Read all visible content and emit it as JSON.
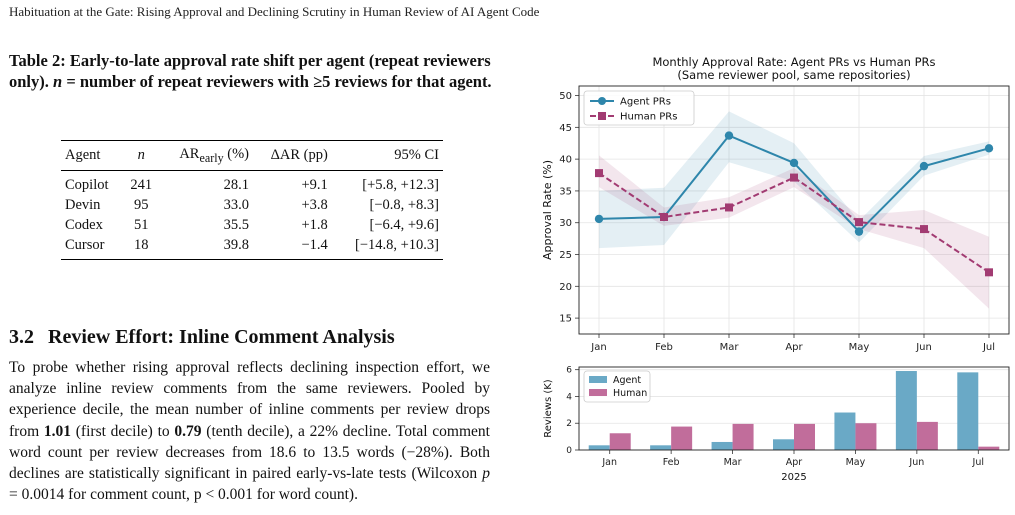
{
  "running_head": "Habituation at the Gate: Rising Approval and Declining Scrutiny in Human Review of AI Agent Code",
  "table": {
    "caption_lead": "Table 2: Early-to-late approval rate shift per agent (repeat reviewers only).",
    "caption_n": "n",
    "caption_rest": " = number of repeat reviewers with ≥5 re­views for that agent.",
    "headers": {
      "agent": "Agent",
      "n": "n",
      "ar_base": "AR",
      "ar_sub": "early",
      "ar_unit": " (%)",
      "dar": "ΔAR (pp)",
      "ci": "95% CI"
    },
    "rows": [
      {
        "agent": "Copilot",
        "n": "241",
        "ar": "28.1",
        "dar": "+9.1",
        "ci": "[+5.8, +12.3]"
      },
      {
        "agent": "Devin",
        "n": "95",
        "ar": "33.0",
        "dar": "+3.8",
        "ci": "[−0.8, +8.3]"
      },
      {
        "agent": "Codex",
        "n": "51",
        "ar": "35.5",
        "dar": "+1.8",
        "ci": "[−6.4, +9.6]"
      },
      {
        "agent": "Cursor",
        "n": "18",
        "ar": "39.8",
        "dar": "−1.4",
        "ci": "[−14.8, +10.3]"
      }
    ]
  },
  "section": {
    "number": "3.2",
    "title": "Review Effort: Inline Comment Analysis",
    "para": {
      "p1": "To probe whether rising approval reflects declining inspection ef­fort, we analyze inline review comments from the same reviewers. Pooled by experience decile, the mean number of inline comments per review drops from ",
      "b1": "1.01",
      "p2": " (first decile) to ",
      "b2": "0.79",
      "p3": " (tenth decile), a 22% decline. Total comment word count per review decreases from 18.6 to 13.5 words (−28%). Both declines are statistically significant in paired early-vs-late tests (Wilcoxon ",
      "pvar": "p",
      "p4": " = 0.0014 for comment count, ",
      "p5": "p < 0.001 for word count)."
    }
  },
  "chart_data": [
    {
      "type": "line",
      "title": "Monthly Approval Rate: Agent PRs vs Human PRs",
      "subtitle": "(Same reviewer pool, same repositories)",
      "xlabel": "",
      "ylabel": "Approval Rate (%)",
      "categories": [
        "Jan",
        "Feb",
        "Mar",
        "Apr",
        "May",
        "Jun",
        "Jul"
      ],
      "ylim": [
        12.5,
        51.5
      ],
      "yticks": [
        15,
        20,
        25,
        30,
        35,
        40,
        45,
        50
      ],
      "grid": true,
      "legend": "top-left",
      "series": [
        {
          "name": "Agent PRs",
          "color": "#2e86ab",
          "style": "solid",
          "marker": "circle",
          "values": [
            30.6,
            30.9,
            43.7,
            39.4,
            28.6,
            38.9,
            41.7
          ],
          "lower": [
            26.0,
            26.5,
            39.5,
            36.5,
            26.9,
            37.4,
            40.7
          ],
          "upper": [
            35.0,
            35.5,
            47.5,
            42.5,
            30.3,
            40.5,
            42.8
          ]
        },
        {
          "name": "Human PRs",
          "color": "#a23b72",
          "style": "dashed",
          "marker": "square",
          "values": [
            37.8,
            30.9,
            32.4,
            37.1,
            30.1,
            29.0,
            22.2
          ],
          "lower": [
            35.6,
            29.5,
            30.8,
            35.6,
            29.0,
            26.0,
            16.5
          ],
          "upper": [
            40.6,
            32.4,
            34.0,
            38.6,
            31.2,
            32.0,
            27.8
          ]
        }
      ]
    },
    {
      "type": "bar",
      "title": "",
      "xlabel": "2025",
      "ylabel": "Reviews (K)",
      "categories": [
        "Jan",
        "Feb",
        "Mar",
        "Apr",
        "May",
        "Jun",
        "Jul"
      ],
      "ylim": [
        0,
        6.2
      ],
      "yticks": [
        0,
        2,
        4,
        6
      ],
      "legend": "top-left",
      "series": [
        {
          "name": "Agent",
          "color": "#6aa9c6",
          "values": [
            0.35,
            0.35,
            0.6,
            0.8,
            2.8,
            5.9,
            5.8
          ]
        },
        {
          "name": "Human",
          "color": "#c16d9b",
          "values": [
            1.25,
            1.75,
            1.95,
            1.95,
            2.0,
            2.1,
            0.25
          ]
        }
      ]
    }
  ]
}
